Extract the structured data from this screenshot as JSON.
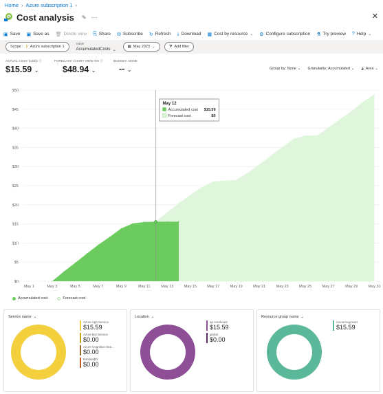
{
  "breadcrumb": {
    "home": "Home",
    "subscription": "Azure subscription 1"
  },
  "page": {
    "title": "Cost analysis"
  },
  "toolbar": {
    "save": "Save",
    "save_as": "Save as",
    "delete_view": "Delete view",
    "share": "Share",
    "subscribe": "Subscribe",
    "refresh": "Refresh",
    "download": "Download",
    "cost_by_resource": "Cost by resource",
    "configure_subscription": "Configure subscription",
    "try_preview": "Try preview",
    "help": "Help"
  },
  "filters": {
    "scope_label": "Scope :",
    "scope_value": "Azure subscription 1",
    "view_label": "VIEW",
    "view_value": "AccumulatedCosts",
    "date_range": "May 2023",
    "add_filter": "Add filter"
  },
  "kpis": {
    "actual_label": "ACTUAL COST (USD)",
    "actual_value": "$15.59",
    "forecast_label": "FORECAST: CHART VIEW ON",
    "forecast_value": "$48.94",
    "budget_label": "BUDGET: NONE",
    "budget_value": "--"
  },
  "controls": {
    "group_by": "Group by: None",
    "granularity": "Granularity: Accumulated",
    "chart_type": "Area"
  },
  "chart_data": {
    "type": "area",
    "y_ticks": [
      "$0",
      "$5",
      "$10",
      "$15",
      "$20",
      "$25",
      "$30",
      "$35",
      "$40",
      "$45",
      "$50"
    ],
    "ylim": [
      0,
      50
    ],
    "x_ticks": [
      "May 1",
      "May 3",
      "May 5",
      "May 7",
      "May 9",
      "May 11",
      "May 13",
      "May 15",
      "May 17",
      "May 19",
      "May 21",
      "May 23",
      "May 25",
      "May 27",
      "May 29",
      "May 31"
    ],
    "xlim": [
      0.5,
      31.5
    ],
    "series": [
      {
        "name": "Accumulated cost",
        "color": "#6ccb5f",
        "points": [
          [
            3,
            0
          ],
          [
            4,
            2.5
          ],
          [
            5,
            4.8
          ],
          [
            6,
            7.2
          ],
          [
            7,
            9.5
          ],
          [
            8,
            11.6
          ],
          [
            9,
            13.8
          ],
          [
            10,
            15.1
          ],
          [
            11,
            15.5
          ],
          [
            12,
            15.59
          ],
          [
            13,
            15.59
          ],
          [
            14,
            15.59
          ]
        ]
      },
      {
        "name": "Forecast cost",
        "color": "#dff6dd",
        "points": [
          [
            12,
            15.59
          ],
          [
            13,
            18
          ],
          [
            14,
            20.4
          ],
          [
            15,
            22.6
          ],
          [
            16,
            24.6
          ],
          [
            17,
            26.1
          ],
          [
            18,
            26.3
          ],
          [
            19,
            26.5
          ],
          [
            20,
            28.4
          ],
          [
            21,
            30.6
          ],
          [
            22,
            32.8
          ],
          [
            23,
            35.1
          ],
          [
            24,
            37.3
          ],
          [
            25,
            38.1
          ],
          [
            26,
            38.1
          ],
          [
            27,
            40.2
          ],
          [
            28,
            42.4
          ],
          [
            29,
            44.5
          ],
          [
            30,
            46.9
          ],
          [
            31,
            48.94
          ]
        ]
      }
    ],
    "grid": true,
    "tooltip": {
      "title": "May 12",
      "x": 12,
      "rows": [
        {
          "label": "Accumulated cost",
          "value": "$15.59",
          "color": "#6ccb5f"
        },
        {
          "label": "Forecast cost",
          "value": "$0",
          "color": "#dff6dd"
        }
      ]
    },
    "legend": [
      {
        "name": "Accumulated cost",
        "color": "#6ccb5f"
      },
      {
        "name": "Forecast cost",
        "color": "#dff6dd"
      }
    ]
  },
  "cards": {
    "service": {
      "title": "Service name",
      "items": [
        {
          "name": "Azure App Service",
          "value": "$15.59",
          "color": "#f4d03f",
          "share": 1
        },
        {
          "name": "Azure Bot Service",
          "value": "$0.00",
          "color": "#c8a415",
          "share": 0
        },
        {
          "name": "Azure Cognitive Sea...",
          "value": "$0.00",
          "color": "#9c6b2e",
          "share": 0
        },
        {
          "name": "Bandwidth",
          "value": "$0.00",
          "color": "#c65a1e",
          "share": 0
        }
      ]
    },
    "location": {
      "title": "Location",
      "items": [
        {
          "name": "ap southeast",
          "value": "$15.59",
          "color": "#8e4f96",
          "share": 1
        },
        {
          "name": "global",
          "value": "$0.00",
          "color": "#5c2d63",
          "share": 0
        }
      ]
    },
    "resource_group": {
      "title": "Resource group name",
      "items": [
        {
          "name": "resourcegroup1",
          "value": "$15.59",
          "color": "#5bb89a",
          "share": 1
        }
      ]
    }
  }
}
